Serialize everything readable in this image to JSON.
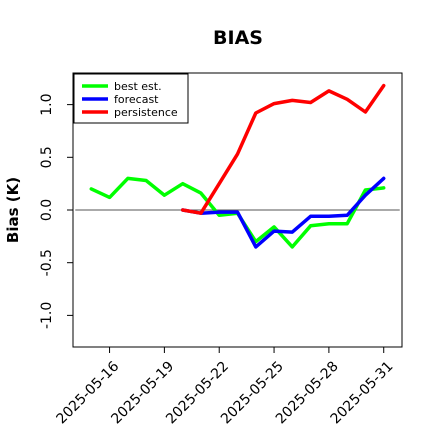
{
  "chart_data": {
    "type": "line",
    "title": "BIAS",
    "xlabel": "",
    "ylabel": "Bias (K)",
    "ylim": [
      -1.3,
      1.3
    ],
    "yticks": [
      -1.0,
      -0.5,
      0.0,
      0.5,
      1.0
    ],
    "ytick_labels": [
      "-1.0",
      "-0.5",
      "0.0",
      "0.5",
      "1.0"
    ],
    "xlim": [
      "2025-05-14",
      "2025-06-01"
    ],
    "xticks": [
      "2025-05-16",
      "2025-05-19",
      "2025-05-22",
      "2025-05-25",
      "2025-05-28",
      "2025-05-31"
    ],
    "highlight_tick": "2025-05-22",
    "highlight_color": "#228b22",
    "grid": false,
    "legend_position": "top-left",
    "zero_line": 0.0,
    "series": [
      {
        "name": "best est.",
        "color": "#00ff00",
        "x": [
          "2025-05-15",
          "2025-05-16",
          "2025-05-17",
          "2025-05-18",
          "2025-05-19",
          "2025-05-20",
          "2025-05-21",
          "2025-05-22",
          "2025-05-23",
          "2025-05-24",
          "2025-05-25",
          "2025-05-26",
          "2025-05-27",
          "2025-05-28",
          "2025-05-29",
          "2025-05-30",
          "2025-05-31"
        ],
        "values": [
          0.2,
          0.12,
          0.3,
          0.28,
          0.14,
          0.25,
          0.16,
          -0.05,
          -0.03,
          -0.3,
          -0.16,
          -0.35,
          -0.15,
          -0.13,
          -0.13,
          0.19,
          0.21
        ]
      },
      {
        "name": "forecast",
        "color": "#0000ff",
        "x": [
          "2025-05-20",
          "2025-05-21",
          "2025-05-22",
          "2025-05-23",
          "2025-05-24",
          "2025-05-25",
          "2025-05-26",
          "2025-05-27",
          "2025-05-28",
          "2025-05-29",
          "2025-05-30",
          "2025-05-31"
        ],
        "values": [
          0.0,
          -0.03,
          -0.02,
          -0.02,
          -0.35,
          -0.2,
          -0.21,
          -0.06,
          -0.06,
          -0.05,
          0.14,
          0.3
        ]
      },
      {
        "name": "persistence",
        "color": "#ff0000",
        "x": [
          "2025-05-20",
          "2025-05-21",
          "2025-05-22",
          "2025-05-23",
          "2025-05-24",
          "2025-05-25",
          "2025-05-26",
          "2025-05-27",
          "2025-05-28",
          "2025-05-29",
          "2025-05-30",
          "2025-05-31"
        ],
        "values": [
          0.0,
          -0.03,
          0.25,
          0.53,
          0.92,
          1.01,
          1.04,
          1.02,
          1.13,
          1.05,
          0.93,
          1.18
        ]
      }
    ]
  }
}
